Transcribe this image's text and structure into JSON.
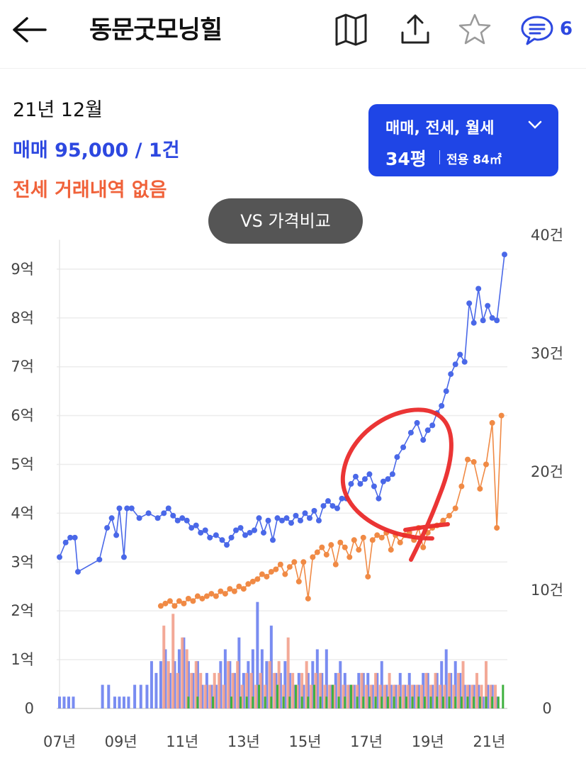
{
  "header": {
    "title": "동문굿모닝힐",
    "comment_count": "6"
  },
  "summary": {
    "date": "21년 12월",
    "sale_text": "매매 95,000 / 1건",
    "jeonse_text": "전세 거래내역 없음"
  },
  "filter": {
    "types_label": "매매, 전세, 월세",
    "size_label": "34평",
    "area_label": "전용 84㎡"
  },
  "compare_button": {
    "label": "VS 가격비교"
  },
  "colors": {
    "sale": "#4a68e8",
    "jeonse": "#f08a45",
    "sale_bar": "#6a7ff0",
    "jeonse_bar": "#f2a08c",
    "monthly_bar": "#3fb13f",
    "annotation": "#ea2a2a",
    "accent": "#1f45e6"
  },
  "chart_data": {
    "type": "line",
    "x_ticks": [
      "07년",
      "09년",
      "11년",
      "13년",
      "15년",
      "17년",
      "19년",
      "21년"
    ],
    "xlim": [
      2007,
      2021.5
    ],
    "y_left": {
      "ticks": [
        "0",
        "1억",
        "2억",
        "3억",
        "4억",
        "5억",
        "6억",
        "7억",
        "8억",
        "9억"
      ],
      "ylim": [
        0,
        9.6
      ]
    },
    "y_right": {
      "ticks": [
        "0",
        "10건",
        "20건",
        "30건",
        "40건"
      ],
      "ylim": [
        0,
        40
      ]
    },
    "series": [
      {
        "kind": "sale_price",
        "x": [
          2007.0,
          2007.2,
          2007.35,
          2007.5,
          2007.6,
          2008.3,
          2008.55,
          2008.7,
          2008.85,
          2008.95,
          2009.1,
          2009.2,
          2009.35,
          2009.6,
          2009.9,
          2010.2,
          2010.4,
          2010.55,
          2010.7,
          2010.85,
          2011.0,
          2011.15,
          2011.3,
          2011.45,
          2011.6,
          2011.75,
          2011.9,
          2012.1,
          2012.3,
          2012.45,
          2012.6,
          2012.75,
          2012.9,
          2013.05,
          2013.2,
          2013.35,
          2013.5,
          2013.65,
          2013.8,
          2013.95,
          2014.1,
          2014.25,
          2014.4,
          2014.55,
          2014.7,
          2014.85,
          2015.0,
          2015.15,
          2015.3,
          2015.45,
          2015.6,
          2015.75,
          2015.9,
          2016.05,
          2016.2,
          2016.35,
          2016.5,
          2016.65,
          2016.8,
          2016.95,
          2017.1,
          2017.25,
          2017.4,
          2017.55,
          2017.7,
          2017.85,
          2018.0,
          2018.2,
          2018.45,
          2018.65,
          2018.85,
          2019.0,
          2019.15,
          2019.3,
          2019.45,
          2019.6,
          2019.75,
          2019.9,
          2020.05,
          2020.2,
          2020.35,
          2020.5,
          2020.65,
          2020.8,
          2020.95,
          2021.1,
          2021.25,
          2021.5
        ],
        "y": [
          3.1,
          3.4,
          3.5,
          3.5,
          2.8,
          3.05,
          3.7,
          3.9,
          3.55,
          4.1,
          3.1,
          4.1,
          4.1,
          3.9,
          4.0,
          3.9,
          4.0,
          4.1,
          3.95,
          3.85,
          3.9,
          3.85,
          3.7,
          3.75,
          3.6,
          3.65,
          3.5,
          3.55,
          3.45,
          3.35,
          3.5,
          3.65,
          3.7,
          3.55,
          3.6,
          3.65,
          3.9,
          3.6,
          3.85,
          3.45,
          3.9,
          3.85,
          3.9,
          3.8,
          3.95,
          3.85,
          4.0,
          3.9,
          4.05,
          3.85,
          4.15,
          4.25,
          4.15,
          4.1,
          4.3,
          4.3,
          4.6,
          4.75,
          4.6,
          4.7,
          4.8,
          4.55,
          4.3,
          4.65,
          4.7,
          4.8,
          5.15,
          5.35,
          5.65,
          5.85,
          5.5,
          5.7,
          5.8,
          6.05,
          6.2,
          6.5,
          6.85,
          7.05,
          7.25,
          7.1,
          8.3,
          7.9,
          8.6,
          7.95,
          8.25,
          8.0,
          7.95,
          9.3
        ]
      },
      {
        "kind": "jeonse_price",
        "x": [
          2010.3,
          2010.45,
          2010.6,
          2010.75,
          2010.9,
          2011.05,
          2011.2,
          2011.35,
          2011.5,
          2011.65,
          2011.8,
          2011.95,
          2012.1,
          2012.25,
          2012.4,
          2012.55,
          2012.7,
          2012.85,
          2013.0,
          2013.15,
          2013.3,
          2013.45,
          2013.6,
          2013.75,
          2013.9,
          2014.05,
          2014.2,
          2014.35,
          2014.5,
          2014.65,
          2014.8,
          2014.95,
          2015.1,
          2015.25,
          2015.4,
          2015.55,
          2015.7,
          2015.85,
          2016.0,
          2016.15,
          2016.3,
          2016.45,
          2016.6,
          2016.75,
          2016.9,
          2017.05,
          2017.2,
          2017.35,
          2017.5,
          2017.65,
          2017.8,
          2017.95,
          2018.1,
          2018.25,
          2018.4,
          2018.55,
          2018.7,
          2018.85,
          2019.0,
          2019.15,
          2019.3,
          2019.5,
          2019.7,
          2019.9,
          2020.1,
          2020.3,
          2020.5,
          2020.7,
          2020.9,
          2021.1,
          2021.25,
          2021.4
        ],
        "y": [
          2.1,
          2.15,
          2.2,
          2.1,
          2.2,
          2.15,
          2.25,
          2.2,
          2.3,
          2.25,
          2.3,
          2.35,
          2.3,
          2.4,
          2.35,
          2.45,
          2.4,
          2.5,
          2.45,
          2.55,
          2.6,
          2.65,
          2.75,
          2.7,
          2.8,
          2.85,
          2.95,
          2.75,
          2.9,
          3.0,
          2.6,
          3.0,
          2.25,
          3.1,
          3.2,
          3.3,
          3.15,
          3.35,
          2.95,
          3.4,
          3.3,
          3.1,
          3.45,
          3.25,
          3.5,
          2.7,
          3.45,
          3.55,
          3.5,
          3.6,
          3.25,
          3.55,
          3.4,
          3.55,
          3.6,
          3.45,
          3.7,
          3.3,
          3.6,
          3.7,
          3.75,
          3.85,
          3.95,
          4.1,
          4.55,
          5.1,
          5.05,
          4.5,
          5.0,
          5.85,
          3.7,
          6.0
        ]
      }
    ],
    "volume_bars": {
      "sale": [
        [
          2007.0,
          1
        ],
        [
          2007.15,
          1
        ],
        [
          2007.3,
          1
        ],
        [
          2007.45,
          1
        ],
        [
          2008.4,
          2
        ],
        [
          2008.6,
          2
        ],
        [
          2008.8,
          1
        ],
        [
          2008.95,
          1
        ],
        [
          2009.1,
          1
        ],
        [
          2009.25,
          1
        ],
        [
          2009.45,
          2
        ],
        [
          2009.65,
          2
        ],
        [
          2009.85,
          2
        ],
        [
          2010.0,
          4
        ],
        [
          2010.15,
          3
        ],
        [
          2010.3,
          4
        ],
        [
          2010.45,
          5
        ],
        [
          2010.6,
          3
        ],
        [
          2010.75,
          4
        ],
        [
          2010.9,
          5
        ],
        [
          2011.05,
          6
        ],
        [
          2011.2,
          4
        ],
        [
          2011.35,
          3
        ],
        [
          2011.5,
          4
        ],
        [
          2011.65,
          2
        ],
        [
          2011.8,
          3
        ],
        [
          2011.95,
          2
        ],
        [
          2012.1,
          2
        ],
        [
          2012.25,
          4
        ],
        [
          2012.4,
          5
        ],
        [
          2012.55,
          4
        ],
        [
          2012.7,
          3
        ],
        [
          2012.85,
          6
        ],
        [
          2013.0,
          3
        ],
        [
          2013.15,
          4
        ],
        [
          2013.3,
          5
        ],
        [
          2013.45,
          9
        ],
        [
          2013.6,
          5
        ],
        [
          2013.75,
          4
        ],
        [
          2013.9,
          7
        ],
        [
          2014.05,
          3
        ],
        [
          2014.2,
          3
        ],
        [
          2014.35,
          4
        ],
        [
          2014.5,
          3
        ],
        [
          2014.65,
          2
        ],
        [
          2014.8,
          3
        ],
        [
          2014.95,
          2
        ],
        [
          2015.1,
          3
        ],
        [
          2015.25,
          4
        ],
        [
          2015.4,
          5
        ],
        [
          2015.55,
          3
        ],
        [
          2015.7,
          5
        ],
        [
          2015.85,
          2
        ],
        [
          2016.0,
          3
        ],
        [
          2016.15,
          4
        ],
        [
          2016.3,
          3
        ],
        [
          2016.45,
          2
        ],
        [
          2016.6,
          2
        ],
        [
          2016.75,
          3
        ],
        [
          2016.9,
          3
        ],
        [
          2017.05,
          3
        ],
        [
          2017.2,
          2
        ],
        [
          2017.35,
          3
        ],
        [
          2017.5,
          4
        ],
        [
          2017.65,
          2
        ],
        [
          2017.8,
          2
        ],
        [
          2017.95,
          2
        ],
        [
          2018.1,
          3
        ],
        [
          2018.25,
          2
        ],
        [
          2018.4,
          3
        ],
        [
          2018.55,
          2
        ],
        [
          2018.7,
          2
        ],
        [
          2018.85,
          3
        ],
        [
          2019.0,
          3
        ],
        [
          2019.15,
          2
        ],
        [
          2019.3,
          3
        ],
        [
          2019.45,
          4
        ],
        [
          2019.6,
          5
        ],
        [
          2019.75,
          3
        ],
        [
          2019.9,
          4
        ],
        [
          2020.05,
          3
        ],
        [
          2020.2,
          2
        ],
        [
          2020.35,
          2
        ],
        [
          2020.5,
          2
        ],
        [
          2020.65,
          2
        ],
        [
          2020.8,
          1
        ],
        [
          2020.95,
          2
        ],
        [
          2021.1,
          2
        ],
        [
          2021.25,
          1
        ]
      ],
      "jeonse": [
        [
          2010.4,
          7
        ],
        [
          2010.55,
          4
        ],
        [
          2010.7,
          8
        ],
        [
          2010.85,
          3
        ],
        [
          2011.0,
          6
        ],
        [
          2011.15,
          5
        ],
        [
          2011.3,
          3
        ],
        [
          2011.45,
          4
        ],
        [
          2011.6,
          3
        ],
        [
          2011.75,
          2
        ],
        [
          2011.9,
          2
        ],
        [
          2012.05,
          3
        ],
        [
          2012.2,
          3
        ],
        [
          2012.35,
          2
        ],
        [
          2012.5,
          4
        ],
        [
          2012.65,
          3
        ],
        [
          2012.8,
          4
        ],
        [
          2012.95,
          2
        ],
        [
          2013.1,
          3
        ],
        [
          2013.25,
          3
        ],
        [
          2013.4,
          2
        ],
        [
          2013.55,
          3
        ],
        [
          2013.7,
          2
        ],
        [
          2013.85,
          4
        ],
        [
          2014.0,
          3
        ],
        [
          2014.15,
          4
        ],
        [
          2014.3,
          2
        ],
        [
          2014.45,
          6
        ],
        [
          2014.6,
          3
        ],
        [
          2014.75,
          2
        ],
        [
          2014.9,
          3
        ],
        [
          2015.05,
          4
        ],
        [
          2015.2,
          2
        ],
        [
          2015.35,
          3
        ],
        [
          2015.5,
          3
        ],
        [
          2015.65,
          2
        ],
        [
          2015.8,
          2
        ],
        [
          2015.95,
          2
        ],
        [
          2016.1,
          3
        ],
        [
          2016.25,
          2
        ],
        [
          2016.4,
          2
        ],
        [
          2016.55,
          2
        ],
        [
          2016.7,
          2
        ],
        [
          2016.85,
          3
        ],
        [
          2017.0,
          2
        ],
        [
          2017.15,
          2
        ],
        [
          2017.3,
          3
        ],
        [
          2017.45,
          2
        ],
        [
          2017.6,
          2
        ],
        [
          2017.75,
          3
        ],
        [
          2017.9,
          2
        ],
        [
          2018.05,
          2
        ],
        [
          2018.2,
          2
        ],
        [
          2018.35,
          2
        ],
        [
          2018.5,
          2
        ],
        [
          2018.65,
          2
        ],
        [
          2018.8,
          2
        ],
        [
          2018.95,
          3
        ],
        [
          2019.1,
          2
        ],
        [
          2019.25,
          3
        ],
        [
          2019.4,
          2
        ],
        [
          2019.55,
          2
        ],
        [
          2019.7,
          3
        ],
        [
          2019.85,
          2
        ],
        [
          2020.0,
          3
        ],
        [
          2020.15,
          4
        ],
        [
          2020.3,
          2
        ],
        [
          2020.45,
          2
        ],
        [
          2020.6,
          3
        ],
        [
          2020.75,
          2
        ],
        [
          2020.9,
          4
        ],
        [
          2021.05,
          2
        ],
        [
          2021.2,
          2
        ]
      ],
      "monthly": [
        [
          2011.2,
          1
        ],
        [
          2011.5,
          1
        ],
        [
          2012.0,
          1
        ],
        [
          2012.6,
          1
        ],
        [
          2012.9,
          1
        ],
        [
          2013.1,
          1
        ],
        [
          2013.3,
          1
        ],
        [
          2013.5,
          2
        ],
        [
          2013.7,
          1
        ],
        [
          2013.9,
          1
        ],
        [
          2014.1,
          2
        ],
        [
          2014.3,
          1
        ],
        [
          2014.5,
          1
        ],
        [
          2014.7,
          2
        ],
        [
          2014.9,
          1
        ],
        [
          2015.1,
          1
        ],
        [
          2015.3,
          2
        ],
        [
          2015.5,
          1
        ],
        [
          2015.7,
          1
        ],
        [
          2015.9,
          2
        ],
        [
          2016.1,
          1
        ],
        [
          2016.3,
          1
        ],
        [
          2016.5,
          2
        ],
        [
          2016.7,
          1
        ],
        [
          2016.9,
          1
        ],
        [
          2017.1,
          1
        ],
        [
          2017.3,
          1
        ],
        [
          2017.5,
          1
        ],
        [
          2017.7,
          1
        ],
        [
          2017.9,
          1
        ],
        [
          2018.1,
          1
        ],
        [
          2018.3,
          1
        ],
        [
          2018.5,
          1
        ],
        [
          2018.7,
          1
        ],
        [
          2018.9,
          1
        ],
        [
          2019.1,
          1
        ],
        [
          2019.3,
          1
        ],
        [
          2019.5,
          1
        ],
        [
          2019.7,
          1
        ],
        [
          2019.9,
          1
        ],
        [
          2020.1,
          1
        ],
        [
          2020.3,
          1
        ],
        [
          2020.5,
          1
        ],
        [
          2020.7,
          1
        ],
        [
          2020.9,
          1
        ],
        [
          2021.1,
          1
        ],
        [
          2021.3,
          1
        ],
        [
          2021.45,
          2
        ]
      ]
    }
  }
}
